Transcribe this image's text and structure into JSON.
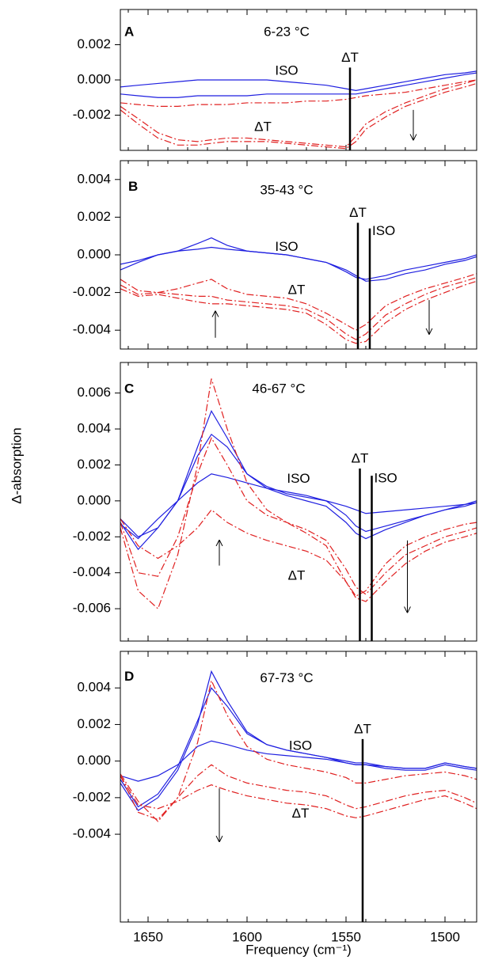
{
  "chart_data": [
    {
      "type": "line",
      "panel": "A",
      "title": "6-23 °C",
      "x": [
        1664,
        1655,
        1645,
        1635,
        1625,
        1618,
        1610,
        1600,
        1590,
        1580,
        1570,
        1560,
        1550,
        1545,
        1540,
        1530,
        1520,
        1510,
        1500,
        1490,
        1484
      ],
      "xlim": [
        1664,
        1484
      ],
      "xticks": [
        1650,
        1600,
        1550,
        1500
      ],
      "xminorticks": [
        1660,
        1640,
        1630,
        1620,
        1610,
        1590,
        1580,
        1570,
        1560,
        1540,
        1530,
        1520,
        1510,
        1490
      ],
      "xtick_labels": false,
      "ylim": [
        -0.004,
        0.004
      ],
      "yticks": [
        0.002,
        {
          "value": 0,
          "label": "0.000"
        },
        -0.002
      ],
      "series": [
        {
          "color": "#1f1fe0",
          "style": "solid",
          "values": [
            -0.0004,
            -0.0003,
            -0.0002,
            -0.0001,
            0,
            0,
            0,
            0,
            0,
            -0.0001,
            -0.0002,
            -0.0003,
            -0.0005,
            -0.0006,
            -0.0005,
            -0.0003,
            -0.0001,
            0.0001,
            0.0003,
            0.0004,
            0.0005
          ]
        },
        {
          "color": "#1f1fe0",
          "style": "solid",
          "values": [
            -0.0008,
            -0.0009,
            -0.001,
            -0.001,
            -0.0009,
            -0.0009,
            -0.0009,
            -0.0009,
            -0.0008,
            -0.0008,
            -0.0008,
            -0.0008,
            -0.0008,
            -0.0008,
            -0.0007,
            -0.0005,
            -0.0003,
            -0.0001,
            0.0001,
            0.0003,
            0.0004
          ]
        },
        {
          "color": "#e02020",
          "style": "dash-dot",
          "values": [
            -0.0013,
            -0.0014,
            -0.0015,
            -0.0015,
            -0.0014,
            -0.0014,
            -0.0014,
            -0.0013,
            -0.0013,
            -0.0013,
            -0.0012,
            -0.0012,
            -0.0011,
            -0.001,
            -0.0009,
            -0.0008,
            -0.0007,
            -0.0005,
            -0.0003,
            -0.0001,
            0
          ]
        },
        {
          "color": "#e02020",
          "style": "dash-dot",
          "values": [
            -0.0015,
            -0.0022,
            -0.003,
            -0.0034,
            -0.0035,
            -0.0034,
            -0.0033,
            -0.0033,
            -0.0034,
            -0.0035,
            -0.0036,
            -0.0037,
            -0.0038,
            -0.0032,
            -0.0025,
            -0.0018,
            -0.0013,
            -0.0009,
            -0.0005,
            -0.0002,
            0
          ]
        },
        {
          "color": "#e02020",
          "style": "dash-dot",
          "values": [
            -0.0017,
            -0.0025,
            -0.0033,
            -0.0037,
            -0.0037,
            -0.0036,
            -0.0035,
            -0.0035,
            -0.0035,
            -0.0036,
            -0.0037,
            -0.0038,
            -0.0039,
            -0.0035,
            -0.0028,
            -0.0021,
            -0.0015,
            -0.0011,
            -0.0007,
            -0.0004,
            -0.0002
          ]
        }
      ],
      "markers": [
        {
          "x": 1548,
          "top": 0.0007,
          "label": "ΔT",
          "anchor": "middle"
        }
      ],
      "annotations": [
        {
          "text": "ISO",
          "x": 1580,
          "y": 0.0005
        },
        {
          "text": "ΔT",
          "x": 1592,
          "y": -0.0027
        }
      ],
      "arrows": [
        {
          "x": 1516,
          "from": -0.0017,
          "to": -0.0034
        }
      ],
      "title_pos": [
        1580,
        0.0027
      ],
      "panel_pos": [
        1662,
        0.0027
      ]
    },
    {
      "type": "line",
      "panel": "B",
      "title": "35-43 °C",
      "x": [
        1664,
        1655,
        1645,
        1635,
        1625,
        1618,
        1610,
        1600,
        1590,
        1580,
        1570,
        1560,
        1550,
        1545,
        1540,
        1530,
        1520,
        1510,
        1500,
        1490,
        1484
      ],
      "xlim": [
        1664,
        1484
      ],
      "xticks": [
        1650,
        1600,
        1550,
        1500
      ],
      "xminorticks": [
        1660,
        1640,
        1630,
        1620,
        1610,
        1590,
        1580,
        1570,
        1560,
        1540,
        1530,
        1520,
        1510,
        1490
      ],
      "xtick_labels": false,
      "ylim": [
        -0.005,
        0.005
      ],
      "yticks": [
        0.004,
        0.002,
        {
          "value": 0,
          "label": "0.000"
        },
        -0.002,
        -0.004
      ],
      "series": [
        {
          "color": "#1f1fe0",
          "style": "solid",
          "values": [
            -0.0008,
            -0.0004,
            0,
            0.0002,
            0.0006,
            0.0009,
            0.0005,
            0.0002,
            0.0001,
            0,
            -0.0002,
            -0.0004,
            -0.0009,
            -0.0012,
            -0.0013,
            -0.0011,
            -0.0008,
            -0.0006,
            -0.0004,
            -0.0002,
            0
          ]
        },
        {
          "color": "#1f1fe0",
          "style": "solid",
          "values": [
            -0.0005,
            -0.0003,
            0,
            0.0002,
            0.0003,
            0.0004,
            0.0003,
            0.0002,
            0.0001,
            0,
            -0.0002,
            -0.0004,
            -0.0008,
            -0.0011,
            -0.0014,
            -0.0013,
            -0.001,
            -0.0008,
            -0.0005,
            -0.0003,
            -0.0001
          ]
        },
        {
          "color": "#e02020",
          "style": "dash-dot",
          "values": [
            -0.0013,
            -0.0019,
            -0.002,
            -0.0018,
            -0.0015,
            -0.0013,
            -0.0018,
            -0.0021,
            -0.0022,
            -0.0023,
            -0.0026,
            -0.0031,
            -0.0037,
            -0.004,
            -0.0037,
            -0.0027,
            -0.0022,
            -0.0018,
            -0.0015,
            -0.0012,
            -0.001
          ]
        },
        {
          "color": "#e02020",
          "style": "dash-dot",
          "values": [
            -0.0016,
            -0.0021,
            -0.002,
            -0.0021,
            -0.0022,
            -0.0022,
            -0.0024,
            -0.0025,
            -0.0026,
            -0.0027,
            -0.0029,
            -0.0034,
            -0.0042,
            -0.0045,
            -0.0042,
            -0.0032,
            -0.0026,
            -0.0021,
            -0.0017,
            -0.0014,
            -0.0012
          ]
        },
        {
          "color": "#e02020",
          "style": "dash-dot",
          "values": [
            -0.0018,
            -0.0022,
            -0.0021,
            -0.0023,
            -0.0025,
            -0.0026,
            -0.0026,
            -0.0027,
            -0.0028,
            -0.0029,
            -0.0031,
            -0.0037,
            -0.0045,
            -0.0047,
            -0.0046,
            -0.0036,
            -0.0029,
            -0.0024,
            -0.002,
            -0.0016,
            -0.0014
          ]
        }
      ],
      "markers": [
        {
          "x": 1544,
          "top": 0.0017,
          "label": "ΔT",
          "anchor": "middle"
        },
        {
          "x": 1538,
          "top": 0.0014,
          "label": "ISO",
          "anchor": "start"
        }
      ],
      "annotations": [
        {
          "text": "ISO",
          "x": 1580,
          "y": 0.0004
        },
        {
          "text": "ΔT",
          "x": 1575,
          "y": -0.0019
        }
      ],
      "arrows": [
        {
          "x": 1616,
          "from": -0.0044,
          "to": -0.003
        },
        {
          "x": 1508,
          "from": -0.0024,
          "to": -0.0042
        }
      ],
      "title_pos": [
        1580,
        0.0034
      ],
      "panel_pos": [
        1660,
        0.0036
      ]
    },
    {
      "type": "line",
      "panel": "C",
      "title": "46-67 °C",
      "ylabel": "Δ-absorption",
      "x": [
        1664,
        1655,
        1645,
        1635,
        1625,
        1618,
        1610,
        1600,
        1590,
        1580,
        1570,
        1560,
        1550,
        1545,
        1540,
        1530,
        1520,
        1510,
        1500,
        1490,
        1484
      ],
      "xlim": [
        1664,
        1484
      ],
      "xticks": [
        1650,
        1600,
        1550,
        1500
      ],
      "xminorticks": [
        1660,
        1640,
        1630,
        1620,
        1610,
        1590,
        1580,
        1570,
        1560,
        1540,
        1530,
        1520,
        1510,
        1490
      ],
      "xtick_labels": false,
      "ylim": [
        -0.0078,
        0.0077
      ],
      "yticks": [
        0.006,
        0.004,
        0.002,
        {
          "value": 0,
          "label": "0.000"
        },
        -0.002,
        -0.004,
        -0.006
      ],
      "series": [
        {
          "color": "#1f1fe0",
          "style": "solid",
          "values": [
            -0.001,
            -0.002,
            -0.0015,
            0,
            0.003,
            0.005,
            0.0035,
            0.0015,
            0.0007,
            0.0003,
            0,
            -0.0003,
            -0.0012,
            -0.0018,
            -0.0021,
            -0.0016,
            -0.0012,
            -0.0008,
            -0.0005,
            -0.0002,
            0
          ]
        },
        {
          "color": "#1f1fe0",
          "style": "solid",
          "values": [
            -0.0012,
            -0.0027,
            -0.0015,
            0,
            0.0025,
            0.0037,
            0.003,
            0.0015,
            0.0008,
            0.0004,
            0.0002,
            0,
            -0.0008,
            -0.0014,
            -0.0017,
            -0.0014,
            -0.0011,
            -0.0008,
            -0.0005,
            -0.0003,
            -0.0001
          ]
        },
        {
          "color": "#1f1fe0",
          "style": "solid",
          "values": [
            -0.0013,
            -0.0021,
            -0.001,
            0,
            0.001,
            0.0015,
            0.0013,
            0.001,
            0.0007,
            0.0005,
            0.0003,
            0,
            -0.0003,
            -0.0005,
            -0.0007,
            -0.0006,
            -0.0005,
            -0.0004,
            -0.0003,
            -0.0002,
            -0.0001
          ]
        },
        {
          "color": "#e02020",
          "style": "dash-dot",
          "values": [
            -0.0015,
            -0.005,
            -0.006,
            -0.003,
            0.002,
            0.0068,
            0.004,
            0.001,
            -0.0005,
            -0.0012,
            -0.0018,
            -0.0025,
            -0.0045,
            -0.0053,
            -0.005,
            -0.0035,
            -0.0025,
            -0.002,
            -0.0016,
            -0.0013,
            -0.0012
          ]
        },
        {
          "color": "#e02020",
          "style": "dash-dot",
          "values": [
            -0.0012,
            -0.004,
            -0.0042,
            -0.002,
            0.0015,
            0.0035,
            0.002,
            0,
            -0.0008,
            -0.0012,
            -0.0016,
            -0.0022,
            -0.0038,
            -0.0048,
            -0.0052,
            -0.004,
            -0.003,
            -0.0025,
            -0.002,
            -0.0017,
            -0.0015
          ]
        },
        {
          "color": "#e02020",
          "style": "dash-dot",
          "values": [
            -0.001,
            -0.0025,
            -0.0032,
            -0.0025,
            -0.0015,
            -0.0005,
            -0.0012,
            -0.0018,
            -0.0022,
            -0.0025,
            -0.0028,
            -0.0033,
            -0.0045,
            -0.0054,
            -0.0056,
            -0.0045,
            -0.0035,
            -0.0028,
            -0.0023,
            -0.002,
            -0.0018
          ]
        }
      ],
      "markers": [
        {
          "x": 1543,
          "top": 0.0018,
          "label": "ΔT",
          "anchor": "middle"
        },
        {
          "x": 1537,
          "top": 0.0014,
          "label": "ISO",
          "anchor": "start"
        }
      ],
      "annotations": [
        {
          "text": "ISO",
          "x": 1574,
          "y": 0.0012
        },
        {
          "text": "ΔT",
          "x": 1575,
          "y": -0.0042
        }
      ],
      "arrows": [
        {
          "x": 1614,
          "from": -0.0036,
          "to": -0.0022
        },
        {
          "x": 1519,
          "from": -0.0022,
          "to": -0.0062
        }
      ],
      "title_pos": [
        1584,
        0.0062
      ],
      "panel_pos": [
        1662,
        0.0062
      ]
    },
    {
      "type": "line",
      "panel": "D",
      "title": "67-73 °C",
      "xlabel": "Frequency (cm⁻¹)",
      "x": [
        1664,
        1655,
        1645,
        1635,
        1625,
        1618,
        1610,
        1600,
        1590,
        1580,
        1570,
        1560,
        1550,
        1545,
        1540,
        1530,
        1520,
        1510,
        1500,
        1490,
        1484
      ],
      "xlim": [
        1664,
        1484
      ],
      "xticks": [
        1650,
        1600,
        1550,
        1500
      ],
      "xminorticks": [
        1660,
        1640,
        1630,
        1620,
        1610,
        1590,
        1580,
        1570,
        1560,
        1540,
        1530,
        1520,
        1510,
        1490
      ],
      "xtick_labels": true,
      "ylim": [
        -0.0088,
        0.006
      ],
      "yticks": [
        0.004,
        0.002,
        {
          "value": 0,
          "label": "0.000"
        },
        -0.002,
        -0.004
      ],
      "series": [
        {
          "color": "#1f1fe0",
          "style": "solid",
          "values": [
            -0.0012,
            -0.0027,
            -0.002,
            -0.0005,
            0.002,
            0.0049,
            0.0033,
            0.0016,
            0.0009,
            0.0006,
            0.0004,
            0.0002,
            0,
            -0.0001,
            -0.0001,
            -0.0003,
            -0.0004,
            -0.0004,
            -0.0001,
            -0.0003,
            -0.0004
          ]
        },
        {
          "color": "#1f1fe0",
          "style": "solid",
          "values": [
            -0.001,
            -0.0025,
            -0.0018,
            -0.0003,
            0.0022,
            0.004,
            0.003,
            0.0015,
            0.0009,
            0.0006,
            0.0004,
            0.0002,
            -0.0001,
            -0.0002,
            -0.0002,
            -0.0004,
            -0.0005,
            -0.0005,
            -0.0002,
            -0.0004,
            -0.0005
          ]
        },
        {
          "color": "#1f1fe0",
          "style": "solid",
          "values": [
            -0.0008,
            -0.0011,
            -0.0008,
            -0.0002,
            0.0008,
            0.0011,
            0.0009,
            0.0006,
            0.0004,
            0.0003,
            0.0002,
            0.0001,
            -0.0001,
            -0.0002,
            -0.0002,
            -0.0003,
            -0.0004,
            -0.0004,
            -0.0001,
            -0.0003,
            -0.0004
          ]
        },
        {
          "color": "#e02020",
          "style": "dash-dot",
          "values": [
            -0.0008,
            -0.0028,
            -0.0032,
            -0.002,
            0.001,
            0.0044,
            0.0025,
            0.0008,
            0.0001,
            -0.0002,
            -0.0004,
            -0.0006,
            -0.0009,
            -0.0012,
            -0.0012,
            -0.001,
            -0.0008,
            -0.0007,
            -0.0006,
            -0.0008,
            -0.001
          ]
        },
        {
          "color": "#e02020",
          "style": "dash-dot",
          "values": [
            -0.0007,
            -0.0022,
            -0.0033,
            -0.002,
            -0.0008,
            -0.0002,
            -0.0008,
            -0.0012,
            -0.0014,
            -0.0016,
            -0.0017,
            -0.0019,
            -0.0024,
            -0.0026,
            -0.0025,
            -0.0022,
            -0.0019,
            -0.0017,
            -0.0016,
            -0.002,
            -0.0023
          ]
        },
        {
          "color": "#e02020",
          "style": "dash-dot",
          "values": [
            -0.0008,
            -0.0024,
            -0.0026,
            -0.0022,
            -0.0016,
            -0.0013,
            -0.0016,
            -0.0019,
            -0.0021,
            -0.0023,
            -0.0024,
            -0.0026,
            -0.003,
            -0.0031,
            -0.003,
            -0.0027,
            -0.0024,
            -0.0021,
            -0.0019,
            -0.0023,
            -0.0026
          ]
        }
      ],
      "markers": [
        {
          "x": 1541.6,
          "top": 0.0012,
          "label": "ΔT",
          "anchor": "middle"
        }
      ],
      "annotations": [
        {
          "text": "ISO",
          "x": 1573,
          "y": 0.0008
        },
        {
          "text": "ΔT",
          "x": 1573,
          "y": -0.0029
        }
      ],
      "arrows": [
        {
          "x": 1614,
          "from": -0.0015,
          "to": -0.0044
        }
      ],
      "title_pos": [
        1580,
        0.0045
      ],
      "panel_pos": [
        1662,
        0.0046
      ]
    }
  ]
}
